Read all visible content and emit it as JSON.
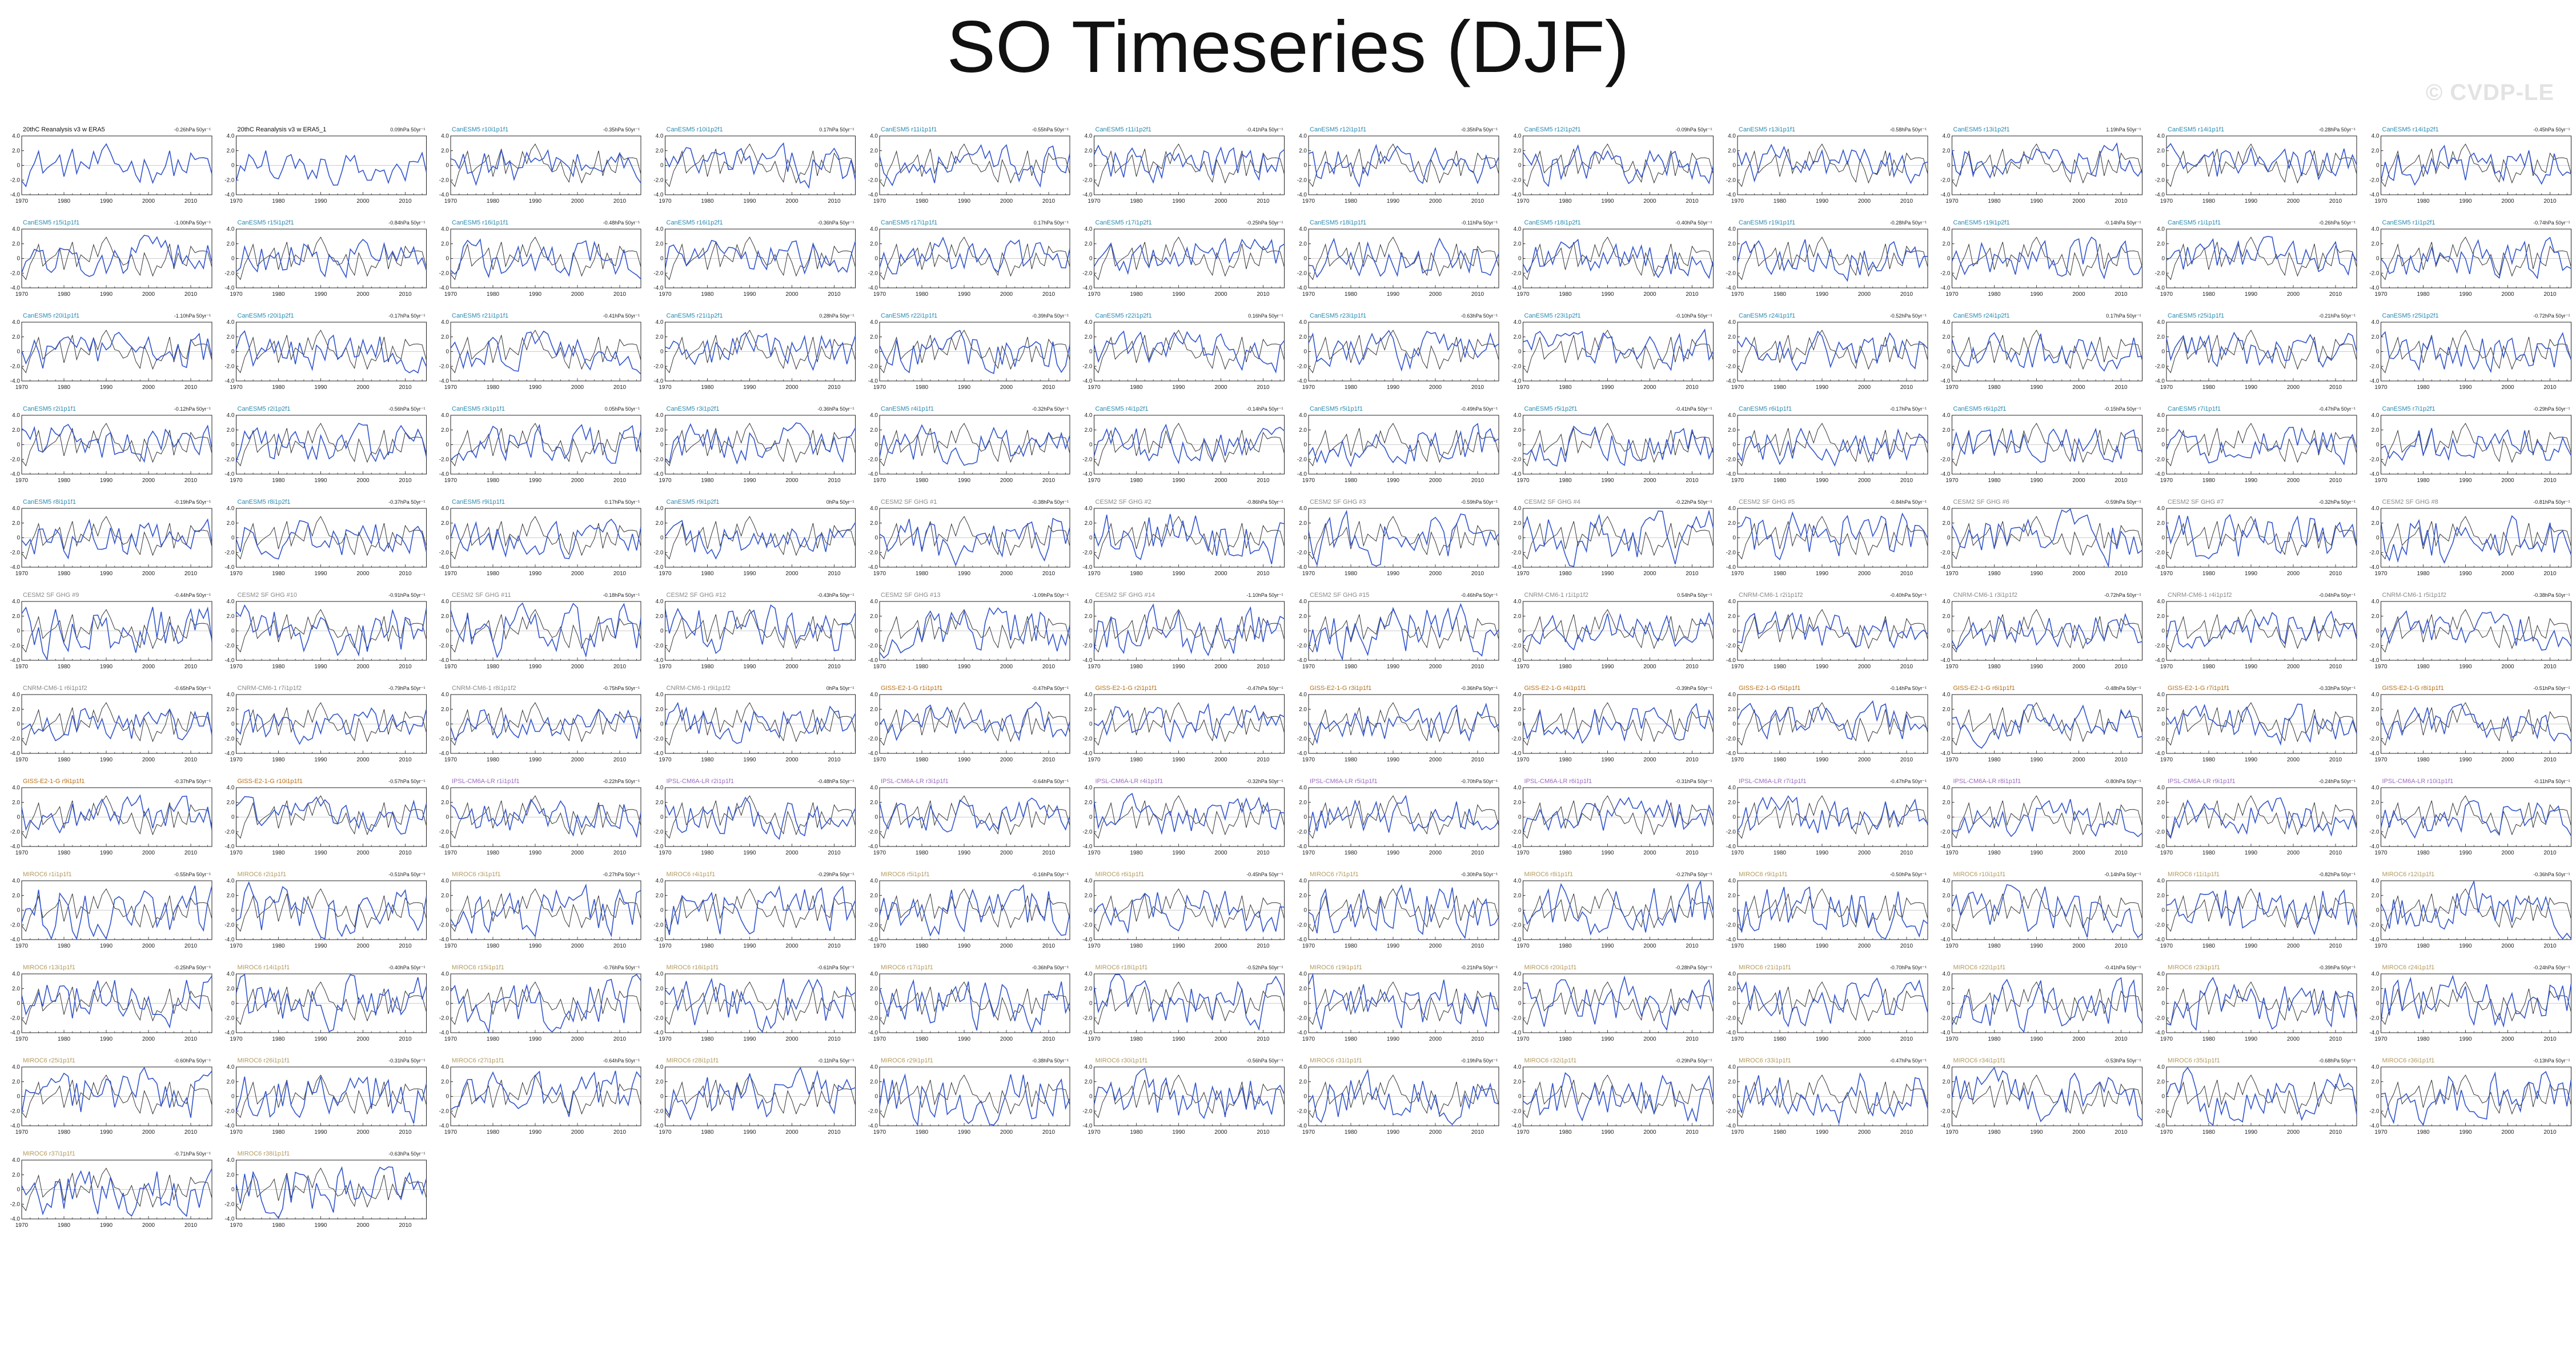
{
  "page": {
    "title": "SO Timeseries (DJF)",
    "watermark": "© CVDP-LE"
  },
  "colors": {
    "observed": "#333333",
    "simulated": "#3355cc",
    "title_obs": "#111111",
    "title_canesm5": "#2a8ab0",
    "title_cesm2": "#8a8a8a",
    "title_cnrm": "#8a8a8a",
    "title_giss": "#b86f16",
    "title_ipsl": "#9a6cc0",
    "title_miroc": "#b39a5e"
  },
  "chart_data": {
    "type": "line",
    "x_ticks": [
      "1970",
      "1980",
      "1990",
      "2000",
      "2010"
    ],
    "y_ticks": [
      "4.0",
      "2.0",
      "0",
      "-2.0",
      "-4.0"
    ],
    "xlim": [
      1970,
      2015
    ],
    "ylim": [
      -4,
      4
    ],
    "panels": [
      {
        "title": "20thC Reanalysis v3 w ERA5",
        "trend": "-0.26hPa 50yr⁻¹",
        "group": "obs"
      },
      {
        "title": "20thC Reanalysis v3 w ERA5_1",
        "trend": "0.09hPa 50yr⁻¹",
        "group": "obs"
      },
      {
        "title": "CanESM5 r10i1p1f1",
        "trend": "-0.35hPa 50yr⁻¹",
        "group": "canesm5"
      },
      {
        "title": "CanESM5 r10i1p2f1",
        "trend": "0.17hPa 50yr⁻¹",
        "group": "canesm5"
      },
      {
        "title": "CanESM5 r11i1p1f1",
        "trend": "-0.55hPa 50yr⁻¹",
        "group": "canesm5"
      },
      {
        "title": "CanESM5 r11i1p2f1",
        "trend": "-0.41hPa 50yr⁻¹",
        "group": "canesm5"
      },
      {
        "title": "CanESM5 r12i1p1f1",
        "trend": "-0.35hPa 50yr⁻¹",
        "group": "canesm5"
      },
      {
        "title": "CanESM5 r12i1p2f1",
        "trend": "-0.09hPa 50yr⁻¹",
        "group": "canesm5"
      },
      {
        "title": "CanESM5 r13i1p1f1",
        "trend": "-0.58hPa 50yr⁻¹",
        "group": "canesm5"
      },
      {
        "title": "CanESM5 r13i1p2f1",
        "trend": "1.19hPa 50yr⁻¹",
        "group": "canesm5"
      },
      {
        "title": "CanESM5 r14i1p1f1",
        "trend": "-0.28hPa 50yr⁻¹",
        "group": "canesm5"
      },
      {
        "title": "CanESM5 r14i1p2f1",
        "trend": "-0.45hPa 50yr⁻¹",
        "group": "canesm5"
      },
      {
        "title": "CanESM5 r15i1p1f1",
        "trend": "-1.00hPa 50yr⁻¹",
        "group": "canesm5"
      },
      {
        "title": "CanESM5 r15i1p2f1",
        "trend": "-0.84hPa 50yr⁻¹",
        "group": "canesm5"
      },
      {
        "title": "CanESM5 r16i1p1f1",
        "trend": "-0.48hPa 50yr⁻¹",
        "group": "canesm5"
      },
      {
        "title": "CanESM5 r16i1p2f1",
        "trend": "-0.36hPa 50yr⁻¹",
        "group": "canesm5"
      },
      {
        "title": "CanESM5 r17i1p1f1",
        "trend": "0.17hPa 50yr⁻¹",
        "group": "canesm5"
      },
      {
        "title": "CanESM5 r17i1p2f1",
        "trend": "-0.25hPa 50yr⁻¹",
        "group": "canesm5"
      },
      {
        "title": "CanESM5 r18i1p1f1",
        "trend": "-0.11hPa 50yr⁻¹",
        "group": "canesm5"
      },
      {
        "title": "CanESM5 r18i1p2f1",
        "trend": "-0.40hPa 50yr⁻¹",
        "group": "canesm5"
      },
      {
        "title": "CanESM5 r19i1p1f1",
        "trend": "-0.28hPa 50yr⁻¹",
        "group": "canesm5"
      },
      {
        "title": "CanESM5 r19i1p2f1",
        "trend": "-0.14hPa 50yr⁻¹",
        "group": "canesm5"
      },
      {
        "title": "CanESM5 r1i1p1f1",
        "trend": "-0.26hPa 50yr⁻¹",
        "group": "canesm5"
      },
      {
        "title": "CanESM5 r1i1p2f1",
        "trend": "-0.74hPa 50yr⁻¹",
        "group": "canesm5"
      },
      {
        "title": "CanESM5 r20i1p1f1",
        "trend": "-1.10hPa 50yr⁻¹",
        "group": "canesm5"
      },
      {
        "title": "CanESM5 r20i1p2f1",
        "trend": "-0.17hPa 50yr⁻¹",
        "group": "canesm5"
      },
      {
        "title": "CanESM5 r21i1p1f1",
        "trend": "-0.41hPa 50yr⁻¹",
        "group": "canesm5"
      },
      {
        "title": "CanESM5 r21i1p2f1",
        "trend": "0.28hPa 50yr⁻¹",
        "group": "canesm5"
      },
      {
        "title": "CanESM5 r22i1p1f1",
        "trend": "-0.39hPa 50yr⁻¹",
        "group": "canesm5"
      },
      {
        "title": "CanESM5 r22i1p2f1",
        "trend": "0.16hPa 50yr⁻¹",
        "group": "canesm5"
      },
      {
        "title": "CanESM5 r23i1p1f1",
        "trend": "-0.63hPa 50yr⁻¹",
        "group": "canesm5"
      },
      {
        "title": "CanESM5 r23i1p2f1",
        "trend": "-0.10hPa 50yr⁻¹",
        "group": "canesm5"
      },
      {
        "title": "CanESM5 r24i1p1f1",
        "trend": "-0.52hPa 50yr⁻¹",
        "group": "canesm5"
      },
      {
        "title": "CanESM5 r24i1p2f1",
        "trend": "0.17hPa 50yr⁻¹",
        "group": "canesm5"
      },
      {
        "title": "CanESM5 r25i1p1f1",
        "trend": "-0.21hPa 50yr⁻¹",
        "group": "canesm5"
      },
      {
        "title": "CanESM5 r25i1p2f1",
        "trend": "-0.72hPa 50yr⁻¹",
        "group": "canesm5"
      },
      {
        "title": "CanESM5 r2i1p1f1",
        "trend": "-0.12hPa 50yr⁻¹",
        "group": "canesm5"
      },
      {
        "title": "CanESM5 r2i1p2f1",
        "trend": "-0.56hPa 50yr⁻¹",
        "group": "canesm5"
      },
      {
        "title": "CanESM5 r3i1p1f1",
        "trend": "0.05hPa 50yr⁻¹",
        "group": "canesm5"
      },
      {
        "title": "CanESM5 r3i1p2f1",
        "trend": "-0.36hPa 50yr⁻¹",
        "group": "canesm5"
      },
      {
        "title": "CanESM5 r4i1p1f1",
        "trend": "-0.32hPa 50yr⁻¹",
        "group": "canesm5"
      },
      {
        "title": "CanESM5 r4i1p2f1",
        "trend": "-0.14hPa 50yr⁻¹",
        "group": "canesm5"
      },
      {
        "title": "CanESM5 r5i1p1f1",
        "trend": "-0.49hPa 50yr⁻¹",
        "group": "canesm5"
      },
      {
        "title": "CanESM5 r5i1p2f1",
        "trend": "-0.41hPa 50yr⁻¹",
        "group": "canesm5"
      },
      {
        "title": "CanESM5 r6i1p1f1",
        "trend": "-0.17hPa 50yr⁻¹",
        "group": "canesm5"
      },
      {
        "title": "CanESM5 r6i1p2f1",
        "trend": "-0.15hPa 50yr⁻¹",
        "group": "canesm5"
      },
      {
        "title": "CanESM5 r7i1p1f1",
        "trend": "-0.47hPa 50yr⁻¹",
        "group": "canesm5"
      },
      {
        "title": "CanESM5 r7i1p2f1",
        "trend": "-0.29hPa 50yr⁻¹",
        "group": "canesm5"
      },
      {
        "title": "CanESM5 r8i1p1f1",
        "trend": "-0.19hPa 50yr⁻¹",
        "group": "canesm5"
      },
      {
        "title": "CanESM5 r8i1p2f1",
        "trend": "-0.37hPa 50yr⁻¹",
        "group": "canesm5"
      },
      {
        "title": "CanESM5 r9i1p1f1",
        "trend": "0.17hPa 50yr⁻¹",
        "group": "canesm5"
      },
      {
        "title": "CanESM5 r9i1p2f1",
        "trend": "0hPa 50yr⁻¹",
        "group": "canesm5"
      },
      {
        "title": "CESM2 SF GHG #1",
        "trend": "-0.38hPa 50yr⁻¹",
        "group": "cesm2"
      },
      {
        "title": "CESM2 SF GHG #2",
        "trend": "-0.86hPa 50yr⁻¹",
        "group": "cesm2"
      },
      {
        "title": "CESM2 SF GHG #3",
        "trend": "-0.59hPa 50yr⁻¹",
        "group": "cesm2"
      },
      {
        "title": "CESM2 SF GHG #4",
        "trend": "-0.22hPa 50yr⁻¹",
        "group": "cesm2"
      },
      {
        "title": "CESM2 SF GHG #5",
        "trend": "-0.84hPa 50yr⁻¹",
        "group": "cesm2"
      },
      {
        "title": "CESM2 SF GHG #6",
        "trend": "-0.59hPa 50yr⁻¹",
        "group": "cesm2"
      },
      {
        "title": "CESM2 SF GHG #7",
        "trend": "-0.32hPa 50yr⁻¹",
        "group": "cesm2"
      },
      {
        "title": "CESM2 SF GHG #8",
        "trend": "-0.81hPa 50yr⁻¹",
        "group": "cesm2"
      },
      {
        "title": "CESM2 SF GHG #9",
        "trend": "-0.44hPa 50yr⁻¹",
        "group": "cesm2"
      },
      {
        "title": "CESM2 SF GHG #10",
        "trend": "-0.91hPa 50yr⁻¹",
        "group": "cesm2"
      },
      {
        "title": "CESM2 SF GHG #11",
        "trend": "-0.18hPa 50yr⁻¹",
        "group": "cesm2"
      },
      {
        "title": "CESM2 SF GHG #12",
        "trend": "-0.43hPa 50yr⁻¹",
        "group": "cesm2"
      },
      {
        "title": "CESM2 SF GHG #13",
        "trend": "-1.09hPa 50yr⁻¹",
        "group": "cesm2"
      },
      {
        "title": "CESM2 SF GHG #14",
        "trend": "-1.10hPa 50yr⁻¹",
        "group": "cesm2"
      },
      {
        "title": "CESM2 SF GHG #15",
        "trend": "-0.46hPa 50yr⁻¹",
        "group": "cesm2"
      },
      {
        "title": "CNRM-CM6-1 r1i1p1f2",
        "trend": "0.54hPa 50yr⁻¹",
        "group": "cnrm"
      },
      {
        "title": "CNRM-CM6-1 r2i1p1f2",
        "trend": "-0.40hPa 50yr⁻¹",
        "group": "cnrm"
      },
      {
        "title": "CNRM-CM6-1 r3i1p1f2",
        "trend": "-0.72hPa 50yr⁻¹",
        "group": "cnrm"
      },
      {
        "title": "CNRM-CM6-1 r4i1p1f2",
        "trend": "-0.04hPa 50yr⁻¹",
        "group": "cnrm"
      },
      {
        "title": "CNRM-CM6-1 r5i1p1f2",
        "trend": "-0.38hPa 50yr⁻¹",
        "group": "cnrm"
      },
      {
        "title": "CNRM-CM6-1 r6i1p1f2",
        "trend": "-0.65hPa 50yr⁻¹",
        "group": "cnrm"
      },
      {
        "title": "CNRM-CM6-1 r7i1p1f2",
        "trend": "-0.79hPa 50yr⁻¹",
        "group": "cnrm"
      },
      {
        "title": "CNRM-CM6-1 r8i1p1f2",
        "trend": "-0.75hPa 50yr⁻¹",
        "group": "cnrm"
      },
      {
        "title": "CNRM-CM6-1 r9i1p1f2",
        "trend": "0hPa 50yr⁻¹",
        "group": "cnrm"
      },
      {
        "title": "GISS-E2-1-G r1i1p1f1",
        "trend": "-0.47hPa 50yr⁻¹",
        "group": "giss"
      },
      {
        "title": "GISS-E2-1-G r2i1p1f1",
        "trend": "-0.47hPa 50yr⁻¹",
        "group": "giss"
      },
      {
        "title": "GISS-E2-1-G r3i1p1f1",
        "trend": "-0.36hPa 50yr⁻¹",
        "group": "giss"
      },
      {
        "title": "GISS-E2-1-G r4i1p1f1",
        "trend": "-0.39hPa 50yr⁻¹",
        "group": "giss"
      },
      {
        "title": "GISS-E2-1-G r5i1p1f1",
        "trend": "-0.14hPa 50yr⁻¹",
        "group": "giss"
      },
      {
        "title": "GISS-E2-1-G r6i1p1f1",
        "trend": "-0.48hPa 50yr⁻¹",
        "group": "giss"
      },
      {
        "title": "GISS-E2-1-G r7i1p1f1",
        "trend": "-0.33hPa 50yr⁻¹",
        "group": "giss"
      },
      {
        "title": "GISS-E2-1-G r8i1p1f1",
        "trend": "-0.51hPa 50yr⁻¹",
        "group": "giss"
      },
      {
        "title": "GISS-E2-1-G r9i1p1f1",
        "trend": "-0.37hPa 50yr⁻¹",
        "group": "giss"
      },
      {
        "title": "GISS-E2-1-G r10i1p1f1",
        "trend": "-0.57hPa 50yr⁻¹",
        "group": "giss"
      },
      {
        "title": "IPSL-CM6A-LR r1i1p1f1",
        "trend": "-0.22hPa 50yr⁻¹",
        "group": "ipsl"
      },
      {
        "title": "IPSL-CM6A-LR r2i1p1f1",
        "trend": "-0.48hPa 50yr⁻¹",
        "group": "ipsl"
      },
      {
        "title": "IPSL-CM6A-LR r3i1p1f1",
        "trend": "-0.64hPa 50yr⁻¹",
        "group": "ipsl"
      },
      {
        "title": "IPSL-CM6A-LR r4i1p1f1",
        "trend": "-0.32hPa 50yr⁻¹",
        "group": "ipsl"
      },
      {
        "title": "IPSL-CM6A-LR r5i1p1f1",
        "trend": "-0.70hPa 50yr⁻¹",
        "group": "ipsl"
      },
      {
        "title": "IPSL-CM6A-LR r6i1p1f1",
        "trend": "-0.31hPa 50yr⁻¹",
        "group": "ipsl"
      },
      {
        "title": "IPSL-CM6A-LR r7i1p1f1",
        "trend": "-0.47hPa 50yr⁻¹",
        "group": "ipsl"
      },
      {
        "title": "IPSL-CM6A-LR r8i1p1f1",
        "trend": "-0.80hPa 50yr⁻¹",
        "group": "ipsl"
      },
      {
        "title": "IPSL-CM6A-LR r9i1p1f1",
        "trend": "-0.24hPa 50yr⁻¹",
        "group": "ipsl"
      },
      {
        "title": "IPSL-CM6A-LR r10i1p1f1",
        "trend": "-0.11hPa 50yr⁻¹",
        "group": "ipsl"
      },
      {
        "title": "MIROC6 r1i1p1f1",
        "trend": "-0.55hPa 50yr⁻¹",
        "group": "miroc"
      },
      {
        "title": "MIROC6 r2i1p1f1",
        "trend": "-0.51hPa 50yr⁻¹",
        "group": "miroc"
      },
      {
        "title": "MIROC6 r3i1p1f1",
        "trend": "-0.27hPa 50yr⁻¹",
        "group": "miroc"
      },
      {
        "title": "MIROC6 r4i1p1f1",
        "trend": "-0.29hPa 50yr⁻¹",
        "group": "miroc"
      },
      {
        "title": "MIROC6 r5i1p1f1",
        "trend": "-0.16hPa 50yr⁻¹",
        "group": "miroc"
      },
      {
        "title": "MIROC6 r6i1p1f1",
        "trend": "-0.45hPa 50yr⁻¹",
        "group": "miroc"
      },
      {
        "title": "MIROC6 r7i1p1f1",
        "trend": "-0.30hPa 50yr⁻¹",
        "group": "miroc"
      },
      {
        "title": "MIROC6 r8i1p1f1",
        "trend": "-0.27hPa 50yr⁻¹",
        "group": "miroc"
      },
      {
        "title": "MIROC6 r9i1p1f1",
        "trend": "-0.50hPa 50yr⁻¹",
        "group": "miroc"
      },
      {
        "title": "MIROC6 r10i1p1f1",
        "trend": "-0.14hPa 50yr⁻¹",
        "group": "miroc"
      },
      {
        "title": "MIROC6 r11i1p1f1",
        "trend": "-0.82hPa 50yr⁻¹",
        "group": "miroc"
      },
      {
        "title": "MIROC6 r12i1p1f1",
        "trend": "-0.36hPa 50yr⁻¹",
        "group": "miroc"
      },
      {
        "title": "MIROC6 r13i1p1f1",
        "trend": "-0.25hPa 50yr⁻¹",
        "group": "miroc"
      },
      {
        "title": "MIROC6 r14i1p1f1",
        "trend": "-0.40hPa 50yr⁻¹",
        "group": "miroc"
      },
      {
        "title": "MIROC6 r15i1p1f1",
        "trend": "-0.76hPa 50yr⁻¹",
        "group": "miroc"
      },
      {
        "title": "MIROC6 r16i1p1f1",
        "trend": "-0.61hPa 50yr⁻¹",
        "group": "miroc"
      },
      {
        "title": "MIROC6 r17i1p1f1",
        "trend": "-0.36hPa 50yr⁻¹",
        "group": "miroc"
      },
      {
        "title": "MIROC6 r18i1p1f1",
        "trend": "-0.52hPa 50yr⁻¹",
        "group": "miroc"
      },
      {
        "title": "MIROC6 r19i1p1f1",
        "trend": "-0.21hPa 50yr⁻¹",
        "group": "miroc"
      },
      {
        "title": "MIROC6 r20i1p1f1",
        "trend": "-0.28hPa 50yr⁻¹",
        "group": "miroc"
      },
      {
        "title": "MIROC6 r21i1p1f1",
        "trend": "-0.70hPa 50yr⁻¹",
        "group": "miroc"
      },
      {
        "title": "MIROC6 r22i1p1f1",
        "trend": "-0.41hPa 50yr⁻¹",
        "group": "miroc"
      },
      {
        "title": "MIROC6 r23i1p1f1",
        "trend": "-0.39hPa 50yr⁻¹",
        "group": "miroc"
      },
      {
        "title": "MIROC6 r24i1p1f1",
        "trend": "-0.24hPa 50yr⁻¹",
        "group": "miroc"
      },
      {
        "title": "MIROC6 r25i1p1f1",
        "trend": "-0.60hPa 50yr⁻¹",
        "group": "miroc"
      },
      {
        "title": "MIROC6 r26i1p1f1",
        "trend": "-0.31hPa 50yr⁻¹",
        "group": "miroc"
      },
      {
        "title": "MIROC6 r27i1p1f1",
        "trend": "-0.64hPa 50yr⁻¹",
        "group": "miroc"
      },
      {
        "title": "MIROC6 r28i1p1f1",
        "trend": "-0.11hPa 50yr⁻¹",
        "group": "miroc"
      },
      {
        "title": "MIROC6 r29i1p1f1",
        "trend": "-0.38hPa 50yr⁻¹",
        "group": "miroc"
      },
      {
        "title": "MIROC6 r30i1p1f1",
        "trend": "-0.56hPa 50yr⁻¹",
        "group": "miroc"
      },
      {
        "title": "MIROC6 r31i1p1f1",
        "trend": "-0.19hPa 50yr⁻¹",
        "group": "miroc"
      },
      {
        "title": "MIROC6 r32i1p1f1",
        "trend": "-0.29hPa 50yr⁻¹",
        "group": "miroc"
      },
      {
        "title": "MIROC6 r33i1p1f1",
        "trend": "-0.47hPa 50yr⁻¹",
        "group": "miroc"
      },
      {
        "title": "MIROC6 r34i1p1f1",
        "trend": "-0.53hPa 50yr⁻¹",
        "group": "miroc"
      },
      {
        "title": "MIROC6 r35i1p1f1",
        "trend": "-0.68hPa 50yr⁻¹",
        "group": "miroc"
      },
      {
        "title": "MIROC6 r36i1p1f1",
        "trend": "-0.13hPa 50yr⁻¹",
        "group": "miroc"
      },
      {
        "title": "MIROC6 r37i1p1f1",
        "trend": "-0.71hPa 50yr⁻¹",
        "group": "miroc"
      },
      {
        "title": "MIROC6 r38i1p1f1",
        "trend": "-0.63hPa 50yr⁻¹",
        "group": "miroc"
      }
    ]
  }
}
